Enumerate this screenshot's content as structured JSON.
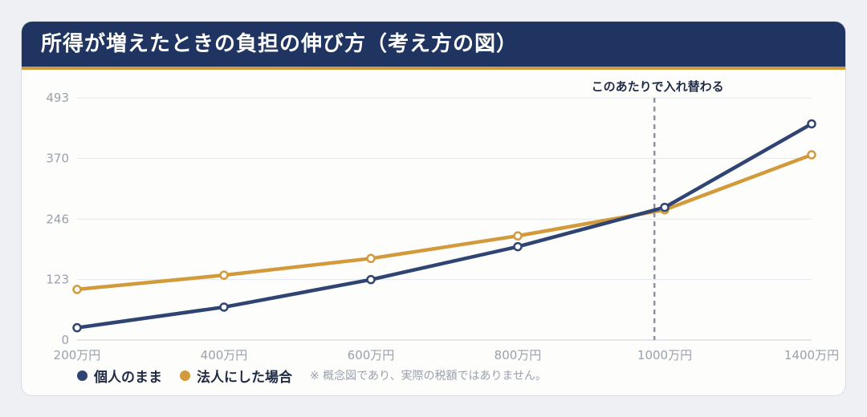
{
  "header": {
    "title": "所得が増えたときの負担の伸び方（考え方の図）"
  },
  "chart_data": {
    "type": "line",
    "title": "所得が増えたときの負担の伸び方（考え方の図）",
    "xlabel": "",
    "ylabel": "",
    "categories": [
      "200万円",
      "400万円",
      "600万円",
      "800万円",
      "1000万円",
      "1400万円"
    ],
    "yticks": [
      0,
      123,
      246,
      370,
      493
    ],
    "ylim": [
      0,
      493
    ],
    "grid": true,
    "series": [
      {
        "name": "個人のまま",
        "color": "#2f4473",
        "values": [
          25,
          67,
          123,
          190,
          270,
          440
        ]
      },
      {
        "name": "法人にした場合",
        "color": "#d39a3c",
        "values": [
          103,
          132,
          166,
          212,
          265,
          377
        ]
      }
    ],
    "annotation": {
      "text": "このあたりで入れ替わる",
      "at_x": 3.93
    },
    "legend_position": "bottom-left",
    "note": "※ 概念図であり、実際の税額ではありません。"
  }
}
